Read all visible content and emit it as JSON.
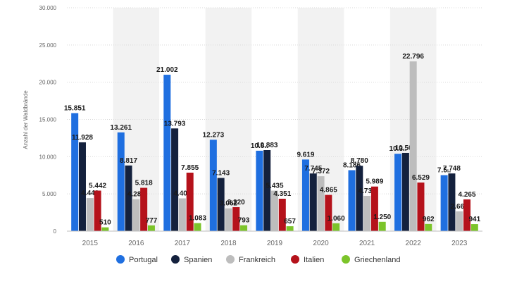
{
  "chart_data": {
    "type": "bar",
    "title": "",
    "xlabel": "",
    "ylabel": "Anzahl der Waldbrände",
    "ylim": [
      0,
      30000
    ],
    "yticks": [
      0,
      5000,
      10000,
      15000,
      20000,
      25000,
      30000
    ],
    "ytick_labels": [
      "0",
      "5.000",
      "10.000",
      "15.000",
      "20.000",
      "25.000",
      "30.000"
    ],
    "categories": [
      "2015",
      "2016",
      "2017",
      "2018",
      "2019",
      "2020",
      "2021",
      "2022",
      "2023"
    ],
    "series": [
      {
        "name": "Portugal",
        "color": "#1f6fe0",
        "values": [
          15851,
          13261,
          21002,
          12273,
          10800,
          9619,
          8186,
          10390,
          7520
        ],
        "labels": [
          "15.851",
          "13.261",
          "21.002",
          "12.273",
          "10.8..",
          "9.619",
          "8.186",
          "10.3..",
          "7.5.."
        ]
      },
      {
        "name": "Spanien",
        "color": "#14213d",
        "values": [
          11928,
          8817,
          13793,
          7143,
          10883,
          7745,
          8780,
          10507,
          7748
        ],
        "labels": [
          "11.928",
          "8.817",
          "13.793",
          "7.143",
          "10.883",
          "7.745",
          "8.780",
          "10.507",
          "7.748"
        ]
      },
      {
        "name": "Frankreich",
        "color": "#bdbdbd",
        "values": [
          4440,
          4285,
          4403,
          3062,
          5435,
          7372,
          4739,
          22796,
          2666
        ],
        "labels": [
          "4.440",
          "4.285",
          "4.403",
          "3.062",
          "5.435",
          "7.372",
          "4.739",
          "22.796",
          "2.666"
        ]
      },
      {
        "name": "Italien",
        "color": "#b5121b",
        "values": [
          5442,
          5818,
          7855,
          3220,
          4351,
          4865,
          5989,
          6529,
          4265
        ],
        "labels": [
          "5.442",
          "5.818",
          "7.855",
          "3.220",
          "4.351",
          "4.865",
          "5.989",
          "6.529",
          "4.265"
        ]
      },
      {
        "name": "Griechenland",
        "color": "#7cc42a",
        "values": [
          510,
          777,
          1083,
          793,
          657,
          1060,
          1250,
          962,
          941
        ],
        "labels": [
          "510",
          "777",
          "1.083",
          "793",
          "657",
          "1.060",
          "1.250",
          "962",
          "941"
        ]
      }
    ],
    "legend_position": "bottom-center",
    "grid": true
  }
}
